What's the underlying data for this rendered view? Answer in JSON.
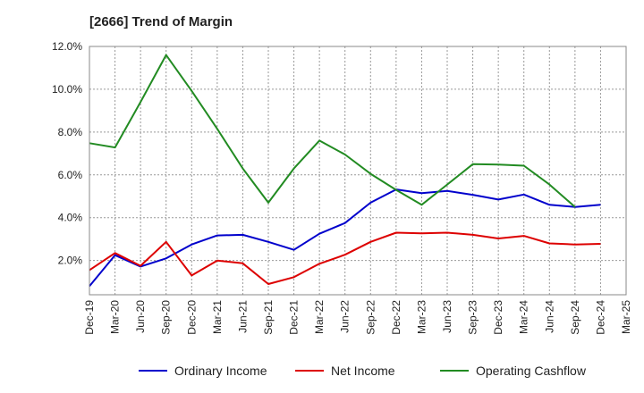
{
  "chart_data": {
    "type": "line",
    "title": "[2666]  Trend of Margin",
    "xlabel": "",
    "ylabel": "",
    "x": [
      "Dec-19",
      "Mar-20",
      "Jun-20",
      "Sep-20",
      "Dec-20",
      "Mar-21",
      "Jun-21",
      "Sep-21",
      "Dec-21",
      "Mar-22",
      "Jun-22",
      "Sep-22",
      "Dec-22",
      "Mar-23",
      "Jun-23",
      "Sep-23",
      "Dec-23",
      "Mar-24",
      "Jun-24",
      "Sep-24",
      "Dec-24",
      "Mar-25"
    ],
    "ylim": [
      0.4,
      12.0
    ],
    "yticks": [
      2.0,
      4.0,
      6.0,
      8.0,
      10.0,
      12.0
    ],
    "ytick_labels": [
      "2.0%",
      "4.0%",
      "6.0%",
      "8.0%",
      "10.0%",
      "12.0%"
    ],
    "grid": true,
    "legend_position": "bottom",
    "series": [
      {
        "name": "Ordinary Income",
        "color": "#0000cc",
        "values": [
          0.8,
          2.25,
          1.72,
          2.1,
          2.75,
          3.17,
          3.2,
          2.87,
          2.5,
          3.25,
          3.75,
          4.7,
          5.32,
          5.15,
          5.25,
          5.07,
          4.85,
          5.08,
          4.6,
          4.5,
          4.6,
          null
        ]
      },
      {
        "name": "Net Income",
        "color": "#dd0000",
        "values": [
          1.55,
          2.35,
          1.75,
          2.87,
          1.3,
          2.0,
          1.87,
          0.9,
          1.22,
          1.85,
          2.27,
          2.87,
          3.3,
          3.27,
          3.3,
          3.2,
          3.03,
          3.15,
          2.8,
          2.75,
          2.78,
          null
        ]
      },
      {
        "name": "Operating Cashflow",
        "color": "#228b22",
        "values": [
          7.48,
          7.28,
          9.4,
          11.6,
          9.92,
          8.15,
          6.3,
          4.7,
          6.3,
          7.6,
          6.95,
          6.05,
          5.3,
          4.6,
          5.55,
          6.5,
          6.48,
          6.43,
          5.55,
          4.5,
          null,
          null
        ]
      }
    ]
  }
}
